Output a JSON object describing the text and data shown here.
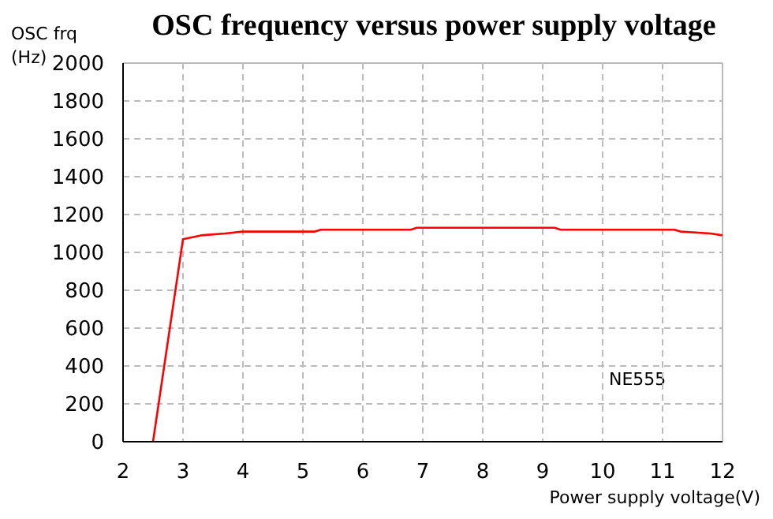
{
  "chart_data": {
    "type": "line",
    "title": "OSC frequency versus power supply voltage",
    "xlabel": "Power supply voltage(V)",
    "ylabel": "OSC frq\n(Hz)",
    "annotations": [
      "NE555"
    ],
    "x": [
      2.5,
      3,
      3.3,
      3.7,
      4,
      5.2,
      5.3,
      6.8,
      6.9,
      9.2,
      9.3,
      11.2,
      11.3,
      11.8,
      12
    ],
    "series": [
      {
        "color": "#ff0000",
        "values": [
          0,
          1070,
          1090,
          1100,
          1110,
          1110,
          1120,
          1120,
          1130,
          1130,
          1120,
          1120,
          1110,
          1100,
          1090
        ]
      }
    ],
    "xlim": [
      2,
      12
    ],
    "xticks": [
      2,
      3,
      4,
      5,
      6,
      7,
      8,
      9,
      10,
      11,
      12
    ],
    "ylim": [
      0,
      2000
    ],
    "yticks": [
      0,
      200,
      400,
      600,
      800,
      1000,
      1200,
      1400,
      1600,
      1800,
      2000
    ],
    "grid": true,
    "marker": "none",
    "line_style": "solid"
  }
}
